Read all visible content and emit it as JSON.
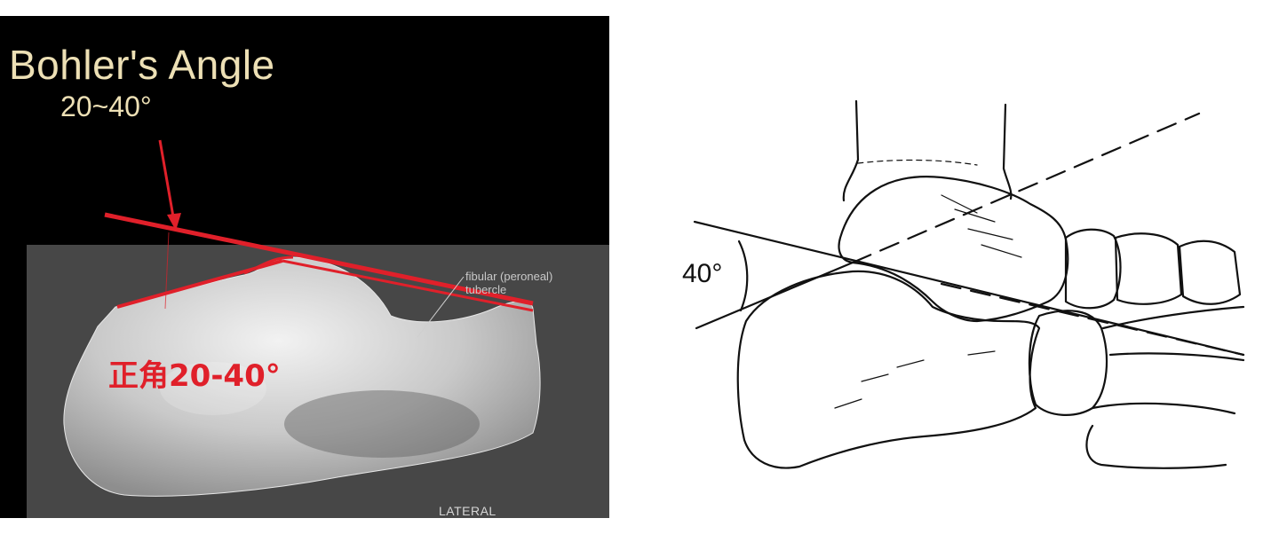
{
  "left_slide": {
    "title": "Bohler's Angle",
    "range": "20~40°",
    "cn_label": "正角20-40°",
    "tubercle_label": "fibular (peroneal) tubercle",
    "view_label": "LATERAL",
    "accent_color": "#e0202a",
    "title_color": "#ede0b5"
  },
  "right_diagram": {
    "angle_label": "40°"
  }
}
